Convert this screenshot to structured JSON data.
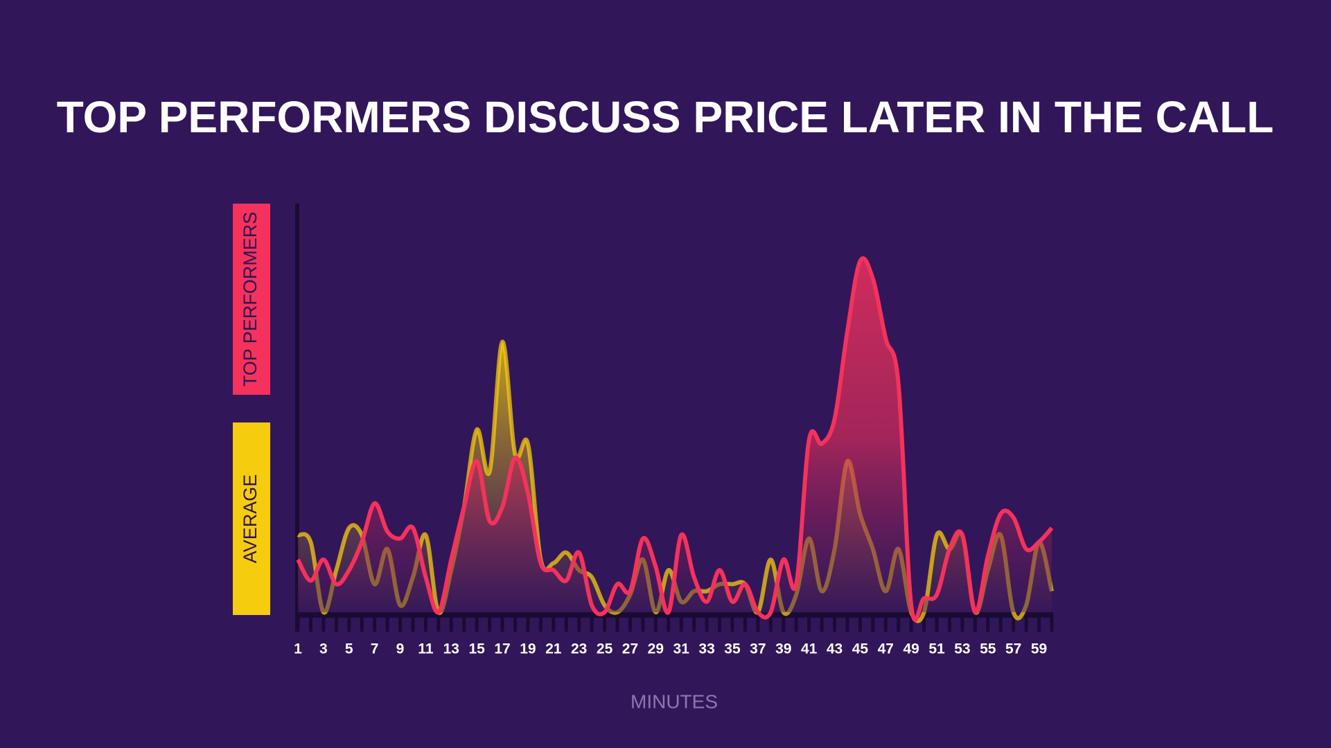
{
  "chart_data": {
    "type": "area",
    "title": "TOP PERFORMERS DISCUSS PRICE LATER IN THE CALL",
    "x_label": "MINUTES",
    "x": [
      1,
      2,
      3,
      4,
      5,
      6,
      7,
      8,
      9,
      10,
      11,
      12,
      13,
      14,
      15,
      16,
      17,
      18,
      19,
      20,
      21,
      22,
      23,
      24,
      25,
      26,
      27,
      28,
      29,
      30,
      31,
      32,
      33,
      34,
      35,
      36,
      37,
      38,
      39,
      40,
      41,
      42,
      43,
      44,
      45,
      46,
      47,
      48,
      49,
      50,
      51,
      52,
      53,
      54,
      55,
      56,
      57,
      58,
      59,
      60
    ],
    "xlim": [
      1,
      60
    ],
    "xticks": [
      1,
      3,
      5,
      7,
      9,
      11,
      13,
      15,
      17,
      19,
      21,
      23,
      25,
      27,
      29,
      31,
      33,
      35,
      37,
      39,
      41,
      43,
      45,
      47,
      49,
      51,
      53,
      55,
      57,
      59
    ],
    "ylim": [
      0,
      100
    ],
    "series": [
      {
        "name": "AVERAGE",
        "color": "#f6cc0e",
        "values": [
          22,
          20,
          0,
          12,
          24,
          22,
          8,
          18,
          2,
          10,
          22,
          0,
          12,
          30,
          52,
          40,
          77,
          45,
          48,
          15,
          14,
          17,
          12,
          10,
          2,
          0,
          5,
          15,
          0,
          12,
          3,
          6,
          6,
          8,
          8,
          8,
          0,
          15,
          0,
          5,
          21,
          6,
          18,
          43,
          28,
          18,
          6,
          18,
          0,
          0,
          22,
          18,
          22,
          0,
          12,
          22,
          0,
          2,
          20,
          6
        ]
      },
      {
        "name": "TOP PERFORMERS",
        "color": "#f5325c",
        "values": [
          15,
          9,
          15,
          8,
          12,
          20,
          31,
          23,
          21,
          24,
          10,
          0,
          15,
          30,
          43,
          26,
          30,
          44,
          34,
          14,
          12,
          9,
          17,
          2,
          0,
          8,
          6,
          21,
          13,
          0,
          22,
          10,
          3,
          12,
          3,
          8,
          0,
          0,
          15,
          8,
          49,
          48,
          55,
          80,
          100,
          95,
          78,
          65,
          2,
          4,
          5,
          18,
          22,
          0,
          16,
          28,
          27,
          18,
          20,
          24
        ]
      }
    ]
  }
}
